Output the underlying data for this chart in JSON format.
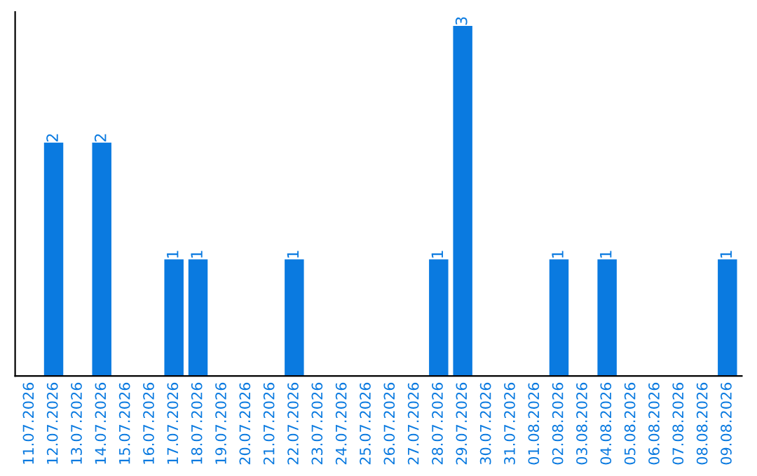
{
  "chart_data": {
    "type": "bar",
    "categories": [
      "11.07.2026",
      "12.07.2026",
      "13.07.2026",
      "14.07.2026",
      "15.07.2026",
      "16.07.2026",
      "17.07.2026",
      "18.07.2026",
      "19.07.2026",
      "20.07.2026",
      "21.07.2026",
      "22.07.2026",
      "23.07.2026",
      "24.07.2026",
      "25.07.2026",
      "26.07.2026",
      "27.07.2026",
      "28.07.2026",
      "29.07.2026",
      "30.07.2026",
      "31.07.2026",
      "01.08.2026",
      "02.08.2026",
      "03.08.2026",
      "04.08.2026",
      "05.08.2026",
      "06.08.2026",
      "07.08.2026",
      "08.08.2026",
      "09.08.2026"
    ],
    "values": [
      0,
      2,
      0,
      2,
      0,
      0,
      1,
      1,
      0,
      0,
      0,
      1,
      0,
      0,
      0,
      0,
      0,
      1,
      3,
      0,
      0,
      0,
      1,
      0,
      1,
      0,
      0,
      0,
      0,
      1
    ],
    "value_labels": [
      null,
      "2",
      null,
      "2",
      null,
      null,
      "1",
      "1",
      null,
      null,
      null,
      "1",
      null,
      null,
      null,
      null,
      null,
      "1",
      "3",
      null,
      null,
      null,
      "1",
      null,
      "1",
      null,
      null,
      null,
      null,
      "1"
    ],
    "color": "#0a7ae0",
    "grid": false,
    "legend": false,
    "tick_labels": "x"
  }
}
